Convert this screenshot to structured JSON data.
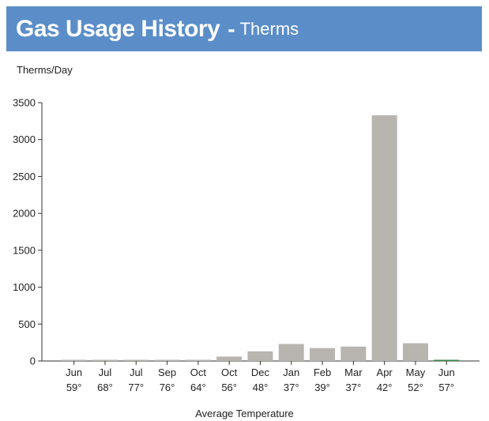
{
  "header": {
    "title": "Gas Usage History",
    "dash": "-",
    "subtitle": "Therms"
  },
  "chart_data": {
    "type": "bar",
    "ylabel": "Therms/Day",
    "xlabel": "Average Temperature",
    "ylim": [
      0,
      3500
    ],
    "yticks": [
      0,
      500,
      1000,
      1500,
      2000,
      2500,
      3000,
      3500
    ],
    "categories": [
      "Jun",
      "Jul",
      "Jul",
      "Sep",
      "Oct",
      "Oct",
      "Dec",
      "Jan",
      "Feb",
      "Mar",
      "Apr",
      "May",
      "Jun"
    ],
    "temperatures": [
      "59°",
      "68°",
      "77°",
      "76°",
      "64°",
      "56°",
      "48°",
      "37°",
      "39°",
      "37°",
      "42°",
      "52°",
      "57°"
    ],
    "values": [
      5,
      5,
      5,
      5,
      5,
      60,
      130,
      230,
      175,
      195,
      3330,
      240,
      10
    ],
    "bar_color": "#b8b4b0",
    "last_bar_color": "#3a8a4a"
  }
}
